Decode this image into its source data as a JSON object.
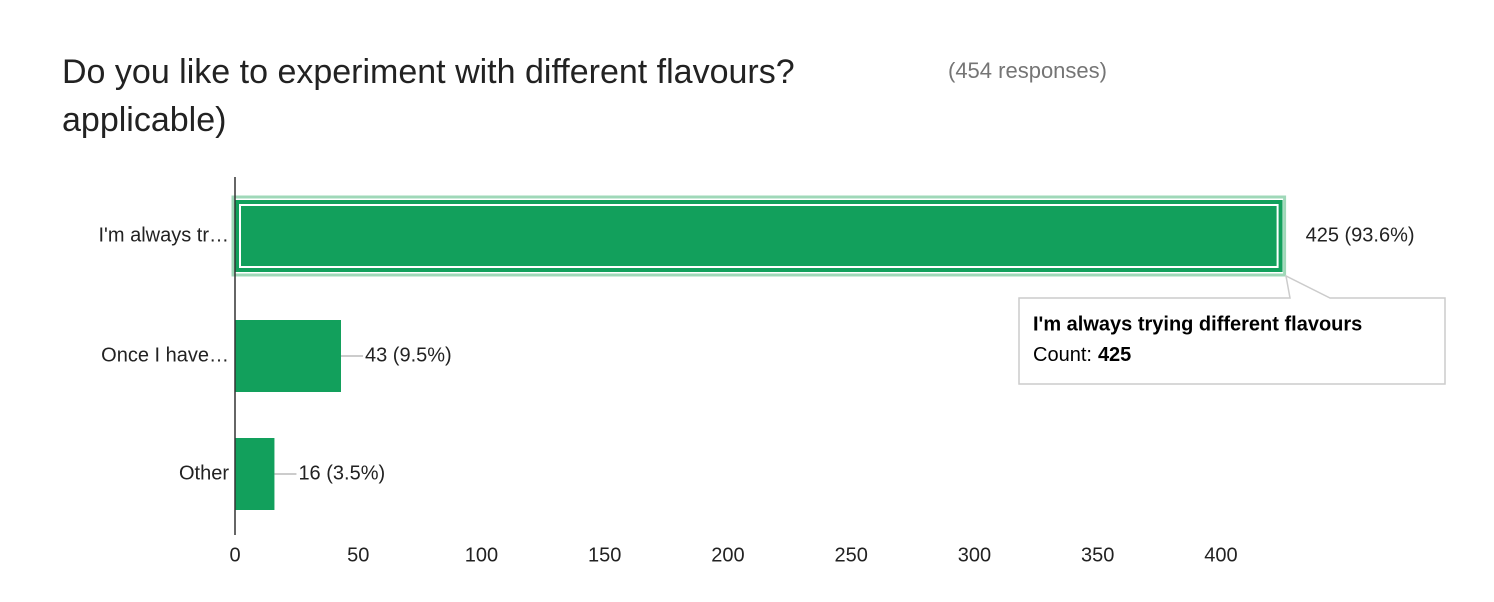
{
  "chart_data": {
    "type": "bar",
    "orientation": "horizontal",
    "title": [
      "Do you like to experiment with different flavours?",
      "applicable)"
    ],
    "subtitle": "(454 responses)",
    "categories": [
      "I'm always tr…",
      "Once I have…",
      "Other"
    ],
    "values": [
      425,
      43,
      16
    ],
    "value_labels": [
      "425 (93.6%)",
      "43 (9.5%)",
      "16 (3.5%)"
    ],
    "color": "#12a05c",
    "xlim": [
      0,
      425
    ],
    "xticks": [
      0,
      50,
      100,
      150,
      200,
      250,
      300,
      350,
      400
    ],
    "grid": false,
    "tooltip": {
      "title": "I'm always trying different flavours",
      "label": "Count:"
    }
  }
}
